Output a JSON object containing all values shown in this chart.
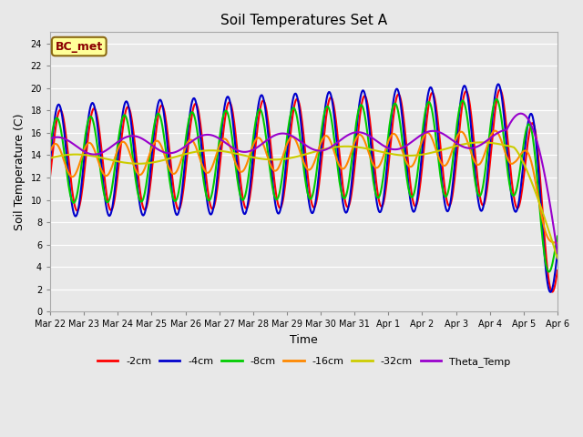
{
  "title": "Soil Temperatures Set A",
  "xlabel": "Time",
  "ylabel": "Soil Temperature (C)",
  "ylim": [
    0,
    25
  ],
  "yticks": [
    0,
    2,
    4,
    6,
    8,
    10,
    12,
    14,
    16,
    18,
    20,
    22,
    24
  ],
  "plot_bg_color": "#e8e8e8",
  "annotation_text": "BC_met",
  "annotation_bg": "#ffff99",
  "annotation_border": "#8b6914",
  "annotation_text_color": "#8b0000",
  "series": [
    {
      "label": "-2cm",
      "color": "#ff0000",
      "lw": 1.5
    },
    {
      "label": "-4cm",
      "color": "#0000cc",
      "lw": 1.5
    },
    {
      "label": "-8cm",
      "color": "#00cc00",
      "lw": 1.5
    },
    {
      "label": "-16cm",
      "color": "#ff8800",
      "lw": 1.5
    },
    {
      "label": "-32cm",
      "color": "#cccc00",
      "lw": 1.5
    },
    {
      "label": "Theta_Temp",
      "color": "#9900cc",
      "lw": 1.5
    }
  ],
  "x_tick_labels": [
    "Mar 22",
    "Mar 23",
    "Mar 24",
    "Mar 25",
    "Mar 26",
    "Mar 27",
    "Mar 28",
    "Mar 29",
    "Mar 30",
    "Mar 31",
    "Apr 1",
    "Apr 2",
    "Apr 3",
    "Apr 4",
    "Apr 5",
    "Apr 6"
  ],
  "n_days": 15,
  "points_per_day": 48
}
